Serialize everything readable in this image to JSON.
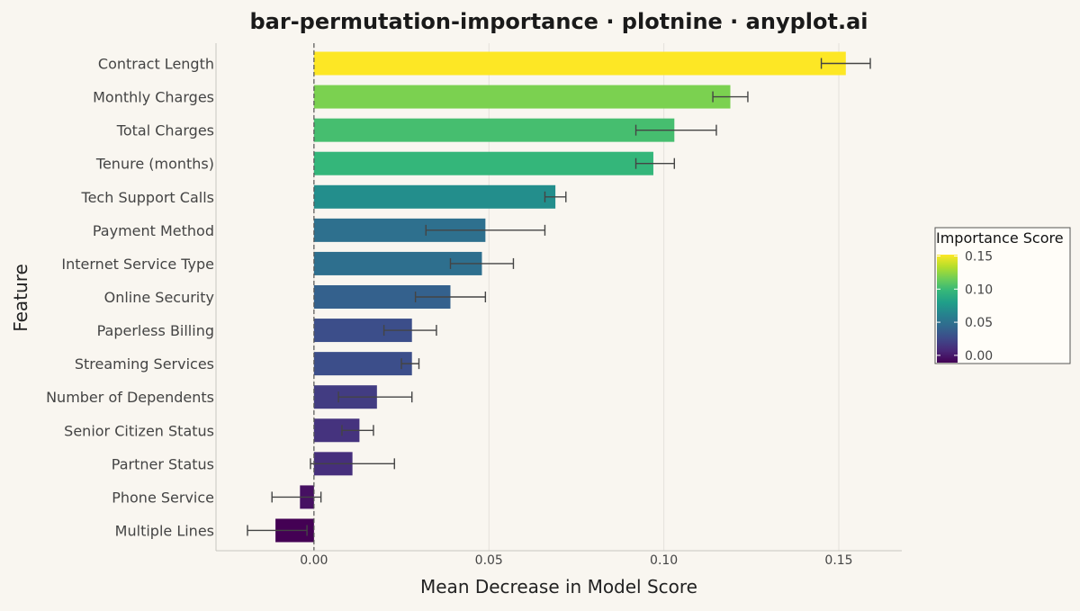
{
  "chart_data": {
    "type": "bar",
    "orientation": "horizontal",
    "title": "bar-permutation-importance · plotnine · anyplot.ai",
    "xlabel": "Mean Decrease in Model Score",
    "ylabel": "Feature",
    "xlim": [
      -0.028,
      0.168
    ],
    "xticks": [
      0.0,
      0.05,
      0.1,
      0.15
    ],
    "xtick_labels": [
      "0.00",
      "0.05",
      "0.10",
      "0.15"
    ],
    "grid": "vertical major",
    "reference_line": {
      "x": 0,
      "style": "dashed"
    },
    "categories": [
      "Contract Length",
      "Monthly Charges",
      "Total Charges",
      "Tenure (months)",
      "Tech Support Calls",
      "Payment Method",
      "Internet Service Type",
      "Online Security",
      "Paperless Billing",
      "Streaming Services",
      "Number of Dependents",
      "Senior Citizen Status",
      "Partner Status",
      "Phone Service",
      "Multiple Lines"
    ],
    "values": [
      0.152,
      0.119,
      0.103,
      0.097,
      0.069,
      0.049,
      0.048,
      0.039,
      0.028,
      0.028,
      0.018,
      0.013,
      0.011,
      -0.004,
      -0.011
    ],
    "error_low": [
      0.145,
      0.114,
      0.092,
      0.092,
      0.066,
      0.032,
      0.039,
      0.029,
      0.02,
      0.025,
      0.007,
      0.008,
      -0.001,
      -0.012,
      -0.019
    ],
    "error_high": [
      0.159,
      0.124,
      0.115,
      0.103,
      0.072,
      0.066,
      0.057,
      0.049,
      0.035,
      0.03,
      0.028,
      0.017,
      0.023,
      0.002,
      -0.002
    ],
    "colorbar": {
      "title": "Importance Score",
      "placement": "right",
      "range": [
        -0.011,
        0.152
      ],
      "ticks": [
        0.0,
        0.05,
        0.1,
        0.15
      ],
      "tick_labels": [
        "0.00",
        "0.05",
        "0.10",
        "0.15"
      ],
      "colormap": "viridis",
      "colors": [
        "#440154",
        "#482878",
        "#3e4989",
        "#31688e",
        "#26828e",
        "#1f9e89",
        "#35b779",
        "#6ece58",
        "#b5de2b",
        "#fde725"
      ]
    },
    "colors": {
      "background": "#f9f6f0",
      "grid": "#e4e1db",
      "axis": "#c8c5bf",
      "errorbar": "#444444",
      "text": "#333333"
    }
  }
}
